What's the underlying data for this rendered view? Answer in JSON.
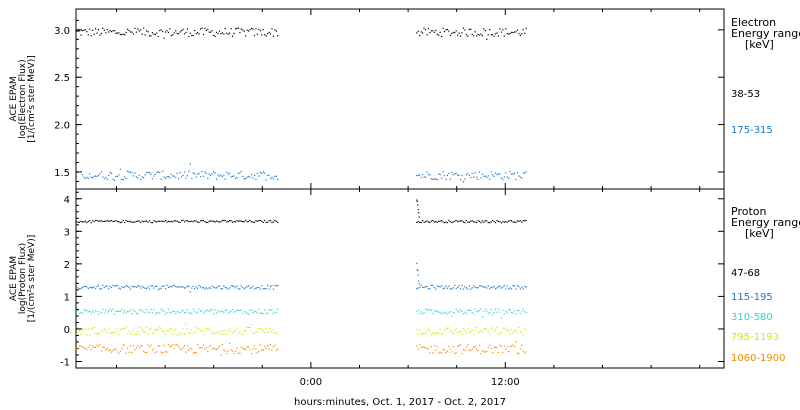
{
  "chart_data": [
    {
      "type": "scatter",
      "panel": "electron",
      "ylabel_lines": [
        "ACE EPAM",
        "log(Electron Flux)",
        "[1/(cm²s ster MeV)]"
      ],
      "legend_title_lines": [
        "Electron",
        "Energy range",
        "[keV]"
      ],
      "ylim": [
        1.32,
        3.22
      ],
      "yticks": [
        1.5,
        2.0,
        2.5,
        3.0
      ],
      "ytick_labels": [
        "1.5",
        "2.0",
        "2.5",
        "3.0"
      ],
      "data_gap_hours": [
        -2.0,
        6.5
      ],
      "series": [
        {
          "name": "38-53",
          "color": "#000000",
          "level": 2.98,
          "jitter": 0.045,
          "spike": null
        },
        {
          "name": "175-315",
          "color": "#1f78c8",
          "level": 1.47,
          "jitter": 0.045,
          "spike": null
        }
      ]
    },
    {
      "type": "scatter",
      "panel": "proton",
      "ylabel_lines": [
        "ACE EPAM",
        "log(Proton Flux)",
        "[1/(cm²s ster MeV)]"
      ],
      "legend_title_lines": [
        "Proton",
        "Energy range",
        "[keV]"
      ],
      "ylim": [
        -1.2,
        4.3
      ],
      "yticks": [
        -1,
        0,
        1,
        2,
        3,
        4
      ],
      "ytick_labels": [
        "-1",
        "0",
        "1",
        "2",
        "3",
        "4"
      ],
      "data_gap_hours": [
        -2.0,
        6.5
      ],
      "series": [
        {
          "name": "47-68",
          "color": "#000000",
          "level": 3.32,
          "jitter": 0.035,
          "spike": 4.0
        },
        {
          "name": "115-195",
          "color": "#1f78c8",
          "level": 1.3,
          "jitter": 0.06,
          "spike": 2.0
        },
        {
          "name": "310-580",
          "color": "#2ed6d0",
          "level": 0.55,
          "jitter": 0.08,
          "spike": null
        },
        {
          "name": "795-1193",
          "color": "#d8e800",
          "level": -0.05,
          "jitter": 0.12,
          "spike": null
        },
        {
          "name": "1060-1900",
          "color": "#f08c00",
          "level": -0.6,
          "jitter": 0.14,
          "spike": null
        }
      ]
    }
  ],
  "x_axis": {
    "start_hour": -14.5,
    "end_hour": 25.5,
    "data_start_hour": -14.5,
    "data_end_hour": 13.3,
    "ticks_hours": [
      0,
      12
    ],
    "tick_labels": [
      "0:00",
      "12:00"
    ],
    "title": "hours:minutes, Oct.  1, 2017 - Oct.  2, 2017"
  }
}
